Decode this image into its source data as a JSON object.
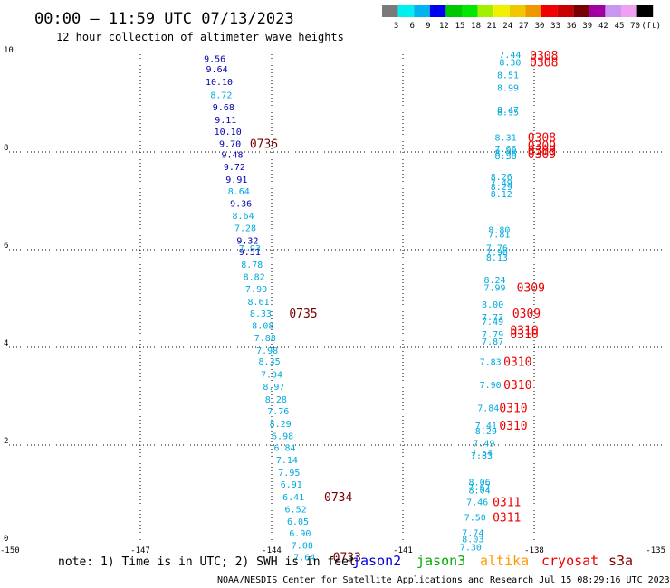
{
  "header": {
    "title": "00:00 — 11:59 UTC 07/13/2023",
    "subtitle": "12 hour collection of altimeter wave heights"
  },
  "colorbar": {
    "labels": [
      "3",
      "6",
      "9",
      "12",
      "15",
      "18",
      "21",
      "24",
      "27",
      "30",
      "33",
      "36",
      "39",
      "42",
      "45",
      "70",
      "(ft)"
    ],
    "colors": [
      "#7a7a7a",
      "#00f0f0",
      "#00b4f0",
      "#0000f0",
      "#00c800",
      "#00e600",
      "#a0f000",
      "#f0f000",
      "#f0c800",
      "#f09600",
      "#f00000",
      "#c80000",
      "#780000",
      "#a000a0",
      "#c896f0",
      "#f0a0f0",
      "#000000"
    ]
  },
  "footer": {
    "note": "note:  1) Time is in UTC; 2) SWH is in feet",
    "satellites": [
      {
        "name": "jason2",
        "color": "#0000dd"
      },
      {
        "name": "jason3",
        "color": "#00aa00"
      },
      {
        "name": "altika",
        "color": "#ff9900"
      },
      {
        "name": "cryosat",
        "color": "#ee0000"
      },
      {
        "name": "s3a",
        "color": "#880000"
      }
    ],
    "credit": "NOAA/NESDIS Center for Satellite Applications and Research    Jul 15 08:29:16 UTC 2023"
  },
  "chart_data": {
    "type": "scatter",
    "xlim": [
      -150,
      -135
    ],
    "ylim": [
      0,
      10
    ],
    "xticks": [
      "-150",
      "-147",
      "-144",
      "-141",
      "-138",
      "-135"
    ],
    "yticks": [
      "0",
      "2",
      "4",
      "6",
      "8",
      "10"
    ],
    "grid": true,
    "colors": {
      "dark": "#0000aa",
      "light": "#00aadd",
      "time_west": "#770000",
      "time_east": "#ee0000"
    },
    "track_west_dark": [
      {
        "x": -145.3,
        "y": 9.92,
        "v": "9.56"
      },
      {
        "x": -145.25,
        "y": 9.7,
        "v": "9.64"
      },
      {
        "x": -145.2,
        "y": 9.44,
        "v": "10.10"
      },
      {
        "x": -145.1,
        "y": 8.93,
        "v": "9.68"
      },
      {
        "x": -145.05,
        "y": 8.67,
        "v": "9.11"
      },
      {
        "x": -145.0,
        "y": 8.43,
        "v": "10.10"
      },
      {
        "x": -144.95,
        "y": 8.18,
        "v": "9.70"
      },
      {
        "x": -144.9,
        "y": 7.95,
        "v": "9.48"
      },
      {
        "x": -144.85,
        "y": 7.7,
        "v": "9.72"
      },
      {
        "x": -144.8,
        "y": 7.44,
        "v": "9.91"
      },
      {
        "x": -144.7,
        "y": 6.95,
        "v": "9.36"
      },
      {
        "x": -144.55,
        "y": 6.19,
        "v": "9.32"
      },
      {
        "x": -144.5,
        "y": 5.96,
        "v": "9.51"
      }
    ],
    "track_west_light": [
      {
        "x": -145.15,
        "y": 9.18,
        "v": "8.72"
      },
      {
        "x": -144.75,
        "y": 7.2,
        "v": "8.64"
      },
      {
        "x": -144.65,
        "y": 6.7,
        "v": "8.64"
      },
      {
        "x": -144.6,
        "y": 6.45,
        "v": "7.28"
      },
      {
        "x": -144.5,
        "y": 6.04,
        "v": "7.93"
      },
      {
        "x": -144.45,
        "y": 5.7,
        "v": "8.78"
      },
      {
        "x": -144.4,
        "y": 5.45,
        "v": "8.82"
      },
      {
        "x": -144.35,
        "y": 5.2,
        "v": "7.90"
      },
      {
        "x": -144.3,
        "y": 4.94,
        "v": "8.61"
      },
      {
        "x": -144.25,
        "y": 4.7,
        "v": "8.33"
      },
      {
        "x": -144.2,
        "y": 4.45,
        "v": "8.08"
      },
      {
        "x": -144.15,
        "y": 4.2,
        "v": "7.88"
      },
      {
        "x": -144.1,
        "y": 3.94,
        "v": "7.98"
      },
      {
        "x": -144.05,
        "y": 3.72,
        "v": "8.35"
      },
      {
        "x": -144.0,
        "y": 3.45,
        "v": "7.94"
      },
      {
        "x": -143.95,
        "y": 3.2,
        "v": "8.97"
      },
      {
        "x": -143.9,
        "y": 2.94,
        "v": "8.28"
      },
      {
        "x": -143.85,
        "y": 2.7,
        "v": "7.76"
      },
      {
        "x": -143.8,
        "y": 2.44,
        "v": "8.29"
      },
      {
        "x": -143.75,
        "y": 2.19,
        "v": "6.98"
      },
      {
        "x": -143.7,
        "y": 1.95,
        "v": "6.84"
      },
      {
        "x": -143.65,
        "y": 1.7,
        "v": "7.14"
      },
      {
        "x": -143.6,
        "y": 1.44,
        "v": "7.95"
      },
      {
        "x": -143.55,
        "y": 1.2,
        "v": "6.91"
      },
      {
        "x": -143.5,
        "y": 0.94,
        "v": "6.41"
      },
      {
        "x": -143.45,
        "y": 0.69,
        "v": "6.52"
      },
      {
        "x": -143.4,
        "y": 0.44,
        "v": "6.05"
      },
      {
        "x": -143.35,
        "y": 0.2,
        "v": "6.90"
      },
      {
        "x": -143.3,
        "y": -0.05,
        "v": "7.08"
      },
      {
        "x": -143.25,
        "y": -0.29,
        "v": "7.64"
      }
    ],
    "track_east_light": [
      {
        "x": -138.55,
        "y": 10.0,
        "v": "7.44"
      },
      {
        "x": -138.55,
        "y": 9.84,
        "v": "8.30"
      },
      {
        "x": -138.6,
        "y": 9.58,
        "v": "8.51"
      },
      {
        "x": -138.6,
        "y": 9.32,
        "v": "8.99"
      },
      {
        "x": -138.6,
        "y": 8.87,
        "v": "8.47"
      },
      {
        "x": -138.6,
        "y": 8.82,
        "v": "8.95"
      },
      {
        "x": -138.65,
        "y": 8.31,
        "v": "8.31"
      },
      {
        "x": -138.65,
        "y": 8.07,
        "v": "7.66"
      },
      {
        "x": -138.65,
        "y": 7.99,
        "v": "8.08"
      },
      {
        "x": -138.65,
        "y": 7.93,
        "v": "8.38"
      },
      {
        "x": -138.75,
        "y": 7.5,
        "v": "8.26"
      },
      {
        "x": -138.75,
        "y": 7.38,
        "v": "7.49"
      },
      {
        "x": -138.75,
        "y": 7.3,
        "v": "8.29"
      },
      {
        "x": -138.75,
        "y": 7.15,
        "v": "8.12"
      },
      {
        "x": -138.8,
        "y": 6.42,
        "v": "8.80"
      },
      {
        "x": -138.8,
        "y": 6.32,
        "v": "7.81"
      },
      {
        "x": -138.85,
        "y": 6.05,
        "v": "7.76"
      },
      {
        "x": -138.85,
        "y": 5.95,
        "v": "7.90"
      },
      {
        "x": -138.85,
        "y": 5.85,
        "v": "8.13"
      },
      {
        "x": -138.9,
        "y": 5.39,
        "v": "8.24"
      },
      {
        "x": -138.9,
        "y": 5.23,
        "v": "7.99"
      },
      {
        "x": -138.95,
        "y": 4.89,
        "v": "8.00"
      },
      {
        "x": -138.95,
        "y": 4.63,
        "v": "7.73"
      },
      {
        "x": -138.95,
        "y": 4.54,
        "v": "7.49"
      },
      {
        "x": -138.95,
        "y": 4.28,
        "v": "7.79"
      },
      {
        "x": -138.95,
        "y": 4.13,
        "v": "7.87"
      },
      {
        "x": -139.0,
        "y": 3.71,
        "v": "7.83"
      },
      {
        "x": -139.0,
        "y": 3.24,
        "v": "7.90"
      },
      {
        "x": -139.05,
        "y": 2.77,
        "v": "7.84"
      },
      {
        "x": -139.1,
        "y": 2.41,
        "v": "7.41"
      },
      {
        "x": -139.1,
        "y": 2.3,
        "v": "8.29"
      },
      {
        "x": -139.15,
        "y": 2.05,
        "v": "7.49"
      },
      {
        "x": -139.2,
        "y": 1.85,
        "v": "7.54"
      },
      {
        "x": -139.2,
        "y": 1.8,
        "v": "7.83"
      },
      {
        "x": -139.25,
        "y": 1.25,
        "v": "8.06"
      },
      {
        "x": -139.25,
        "y": 1.15,
        "v": "7.67"
      },
      {
        "x": -139.25,
        "y": 1.08,
        "v": "8.04"
      },
      {
        "x": -139.3,
        "y": 0.84,
        "v": "7.46"
      },
      {
        "x": -139.35,
        "y": 0.53,
        "v": "7.50"
      },
      {
        "x": -139.4,
        "y": 0.21,
        "v": "7.74"
      },
      {
        "x": -139.4,
        "y": 0.08,
        "v": "8.03"
      },
      {
        "x": -139.45,
        "y": -0.08,
        "v": "7.30"
      }
    ],
    "times_west": [
      {
        "x": -144.5,
        "y": 8.18,
        "t": "0736"
      },
      {
        "x": -143.6,
        "y": 4.7,
        "t": "0735"
      },
      {
        "x": -142.8,
        "y": 0.94,
        "t": "0734"
      },
      {
        "x": -142.6,
        "y": -0.29,
        "t": "0733"
      }
    ],
    "times_east": [
      {
        "x": -138.1,
        "y": 9.98,
        "t": "0308"
      },
      {
        "x": -138.1,
        "y": 9.84,
        "t": "0308"
      },
      {
        "x": -138.15,
        "y": 8.31,
        "t": "0308"
      },
      {
        "x": -138.15,
        "y": 8.14,
        "t": "0309"
      },
      {
        "x": -138.15,
        "y": 8.04,
        "t": "0309"
      },
      {
        "x": -138.15,
        "y": 7.96,
        "t": "0309"
      },
      {
        "x": -138.4,
        "y": 5.23,
        "t": "0309"
      },
      {
        "x": -138.5,
        "y": 4.7,
        "t": "0309"
      },
      {
        "x": -138.55,
        "y": 4.36,
        "t": "0310"
      },
      {
        "x": -138.55,
        "y": 4.28,
        "t": "0310"
      },
      {
        "x": -138.7,
        "y": 3.71,
        "t": "0310"
      },
      {
        "x": -138.7,
        "y": 3.24,
        "t": "0310"
      },
      {
        "x": -138.8,
        "y": 2.77,
        "t": "0310"
      },
      {
        "x": -138.8,
        "y": 2.41,
        "t": "0310"
      },
      {
        "x": -138.95,
        "y": 0.84,
        "t": "0311"
      },
      {
        "x": -138.95,
        "y": 0.53,
        "t": "0311"
      }
    ]
  }
}
